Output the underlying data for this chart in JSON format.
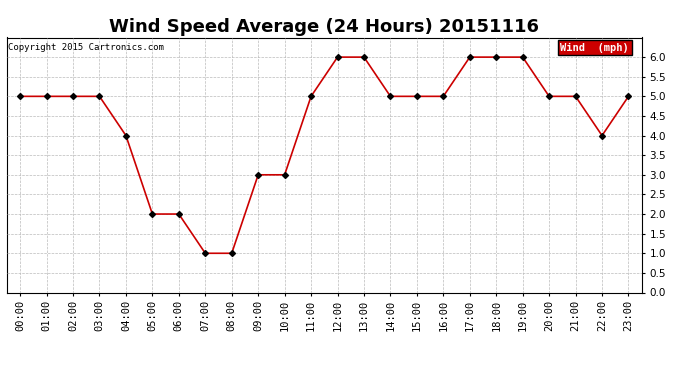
{
  "title": "Wind Speed Average (24 Hours) 20151116",
  "copyright": "Copyright 2015 Cartronics.com",
  "legend_label": "Wind  (mph)",
  "x_labels": [
    "00:00",
    "01:00",
    "02:00",
    "03:00",
    "04:00",
    "05:00",
    "06:00",
    "07:00",
    "08:00",
    "09:00",
    "10:00",
    "11:00",
    "12:00",
    "13:00",
    "14:00",
    "15:00",
    "16:00",
    "17:00",
    "18:00",
    "19:00",
    "20:00",
    "21:00",
    "22:00",
    "23:00"
  ],
  "y_values": [
    5.0,
    5.0,
    5.0,
    5.0,
    4.0,
    2.0,
    2.0,
    1.0,
    1.0,
    3.0,
    3.0,
    5.0,
    6.0,
    6.0,
    5.0,
    5.0,
    5.0,
    6.0,
    6.0,
    6.0,
    5.0,
    5.0,
    4.0,
    5.0
  ],
  "line_color": "#cc0000",
  "marker_color": "#000000",
  "legend_bg": "#cc0000",
  "legend_text_color": "#ffffff",
  "grid_color": "#bbbbbb",
  "background_color": "#ffffff",
  "ylim": [
    0.0,
    6.5
  ],
  "yticks": [
    0.0,
    0.5,
    1.0,
    1.5,
    2.0,
    2.5,
    3.0,
    3.5,
    4.0,
    4.5,
    5.0,
    5.5,
    6.0
  ],
  "title_fontsize": 13,
  "tick_fontsize": 7.5
}
